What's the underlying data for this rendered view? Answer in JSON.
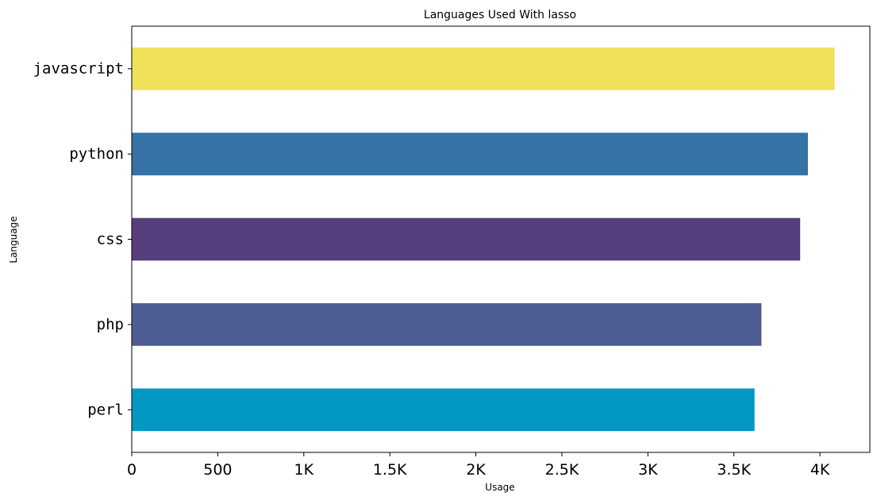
{
  "chart_data": {
    "type": "bar",
    "orientation": "horizontal",
    "title": "Languages Used With lasso",
    "xlabel": "Usage",
    "ylabel": "Language",
    "categories": [
      "javascript",
      "python",
      "css",
      "php",
      "perl"
    ],
    "values": [
      4085,
      3930,
      3885,
      3660,
      3620
    ],
    "colors": [
      "#f0e05a",
      "#3572a5",
      "#563d7c",
      "#4f5d95",
      "#0298c3"
    ],
    "xlim": [
      0,
      4290
    ],
    "xticks": [
      0,
      500,
      1000,
      1500,
      2000,
      2500,
      3000,
      3500,
      4000
    ],
    "xtick_labels": [
      "0",
      "500",
      "1K",
      "1.5K",
      "2K",
      "2.5K",
      "3K",
      "3.5K",
      "4K"
    ],
    "grid": false,
    "legend": "none"
  }
}
